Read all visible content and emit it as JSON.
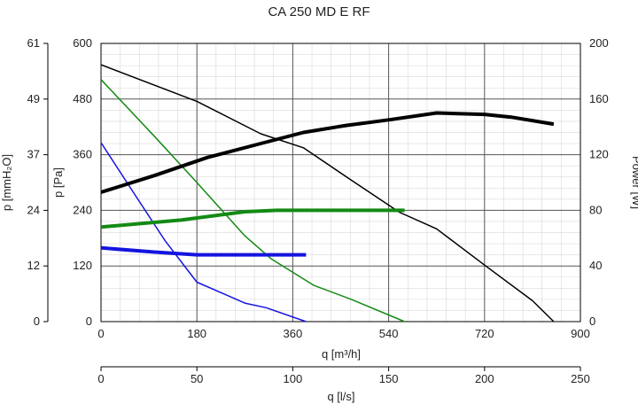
{
  "chart_data": {
    "type": "line",
    "title": "CA 250 MD E RF",
    "xlabel": "q [m³/h]",
    "x2label": "q [l/s]",
    "ylabel": "p [Pa]",
    "y2label": "p [mmH₂O]",
    "y3label": "Power [W]",
    "xlim": [
      0,
      900
    ],
    "x2lim": [
      0,
      250
    ],
    "ylim": [
      0,
      600
    ],
    "y2lim": [
      0,
      61
    ],
    "y3lim": [
      0,
      200
    ],
    "x_ticks": [
      "0",
      "180",
      "360",
      "540",
      "720",
      "900"
    ],
    "x2_ticks": [
      "0",
      "50",
      "100",
      "150",
      "200",
      "250"
    ],
    "y_ticks": [
      "0",
      "120",
      "240",
      "360",
      "480",
      "600"
    ],
    "y2_ticks": [
      "0",
      "12",
      "24",
      "37",
      "49",
      "61"
    ],
    "y3_ticks": [
      "0",
      "40",
      "80",
      "120",
      "160",
      "200"
    ],
    "grid": true,
    "series": [
      {
        "name": "pressure-black",
        "axis": "pressure",
        "color": "#000000",
        "width": 1.5,
        "x": [
          0,
          180,
          300,
          380,
          470,
          560,
          630,
          720,
          810,
          850
        ],
        "y": [
          554,
          475,
          405,
          375,
          305,
          236,
          200,
          122,
          45,
          0
        ]
      },
      {
        "name": "pressure-green",
        "axis": "pressure",
        "color": "#138a13",
        "width": 1.5,
        "x": [
          0,
          100,
          180,
          270,
          320,
          400,
          470,
          570
        ],
        "y": [
          522,
          400,
          300,
          185,
          135,
          78,
          48,
          0
        ]
      },
      {
        "name": "pressure-blue",
        "axis": "pressure",
        "color": "#1414e0",
        "width": 1.5,
        "x": [
          0,
          60,
          120,
          180,
          230,
          270,
          310,
          385
        ],
        "y": [
          386,
          280,
          175,
          85,
          60,
          40,
          30,
          0
        ]
      },
      {
        "name": "power-black",
        "axis": "power",
        "color": "#000000",
        "width": 4,
        "x": [
          0,
          100,
          200,
          300,
          380,
          460,
          540,
          630,
          720,
          770,
          850
        ],
        "y": [
          93,
          105,
          118,
          128,
          136,
          141,
          145,
          150,
          149,
          147,
          142
        ]
      },
      {
        "name": "power-green",
        "axis": "power",
        "color": "#138a13",
        "width": 4,
        "x": [
          0,
          150,
          270,
          330,
          400,
          500,
          570
        ],
        "y": [
          68,
          73,
          79,
          80,
          80,
          80,
          80
        ]
      },
      {
        "name": "power-blue",
        "axis": "power",
        "color": "#1414e0",
        "width": 4,
        "x": [
          0,
          100,
          180,
          260,
          330,
          385
        ],
        "y": [
          53,
          50,
          48,
          48,
          48,
          48
        ]
      }
    ]
  }
}
